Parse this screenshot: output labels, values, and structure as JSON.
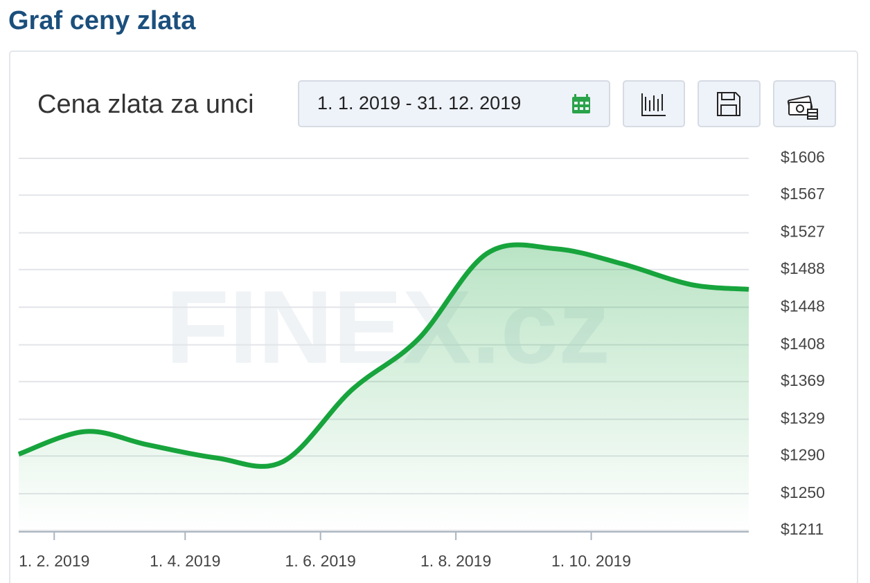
{
  "page": {
    "heading": "Graf ceny zlata",
    "widget_title": "Cena zlata za unci",
    "date_range": "1. 1. 2019 - 31. 12. 2019",
    "watermark": "FINEX.cz"
  },
  "chart_data": {
    "type": "line",
    "color": "#17a43c",
    "grid": true,
    "x": [
      "2019-01-16",
      "2019-02-15",
      "2019-03-15",
      "2019-04-15",
      "2019-05-15",
      "2019-06-15",
      "2019-07-15",
      "2019-08-15",
      "2019-09-15",
      "2019-10-15",
      "2019-11-15",
      "2019-12-11"
    ],
    "values": [
      1292,
      1316,
      1302,
      1288,
      1284,
      1360,
      1414,
      1505,
      1510,
      1494,
      1472,
      1467
    ],
    "xlim": [
      "2019-01-16",
      "2019-12-11"
    ],
    "xticks": [
      {
        "value": "2019-02-01",
        "label": "1. 2. 2019"
      },
      {
        "value": "2019-04-01",
        "label": "1. 4. 2019"
      },
      {
        "value": "2019-06-01",
        "label": "1. 6. 2019"
      },
      {
        "value": "2019-08-01",
        "label": "1. 8. 2019"
      },
      {
        "value": "2019-10-01",
        "label": "1. 10. 2019"
      }
    ],
    "ylim": [
      1211,
      1606
    ],
    "yticks": [
      {
        "value": 1211,
        "label": "$1211"
      },
      {
        "value": 1250,
        "label": "$1250"
      },
      {
        "value": 1290,
        "label": "$1290"
      },
      {
        "value": 1329,
        "label": "$1329"
      },
      {
        "value": 1369,
        "label": "$1369"
      },
      {
        "value": 1408,
        "label": "$1408"
      },
      {
        "value": 1448,
        "label": "$1448"
      },
      {
        "value": 1488,
        "label": "$1488"
      },
      {
        "value": 1527,
        "label": "$1527"
      },
      {
        "value": 1567,
        "label": "$1567"
      },
      {
        "value": 1606,
        "label": "$1606"
      }
    ]
  }
}
